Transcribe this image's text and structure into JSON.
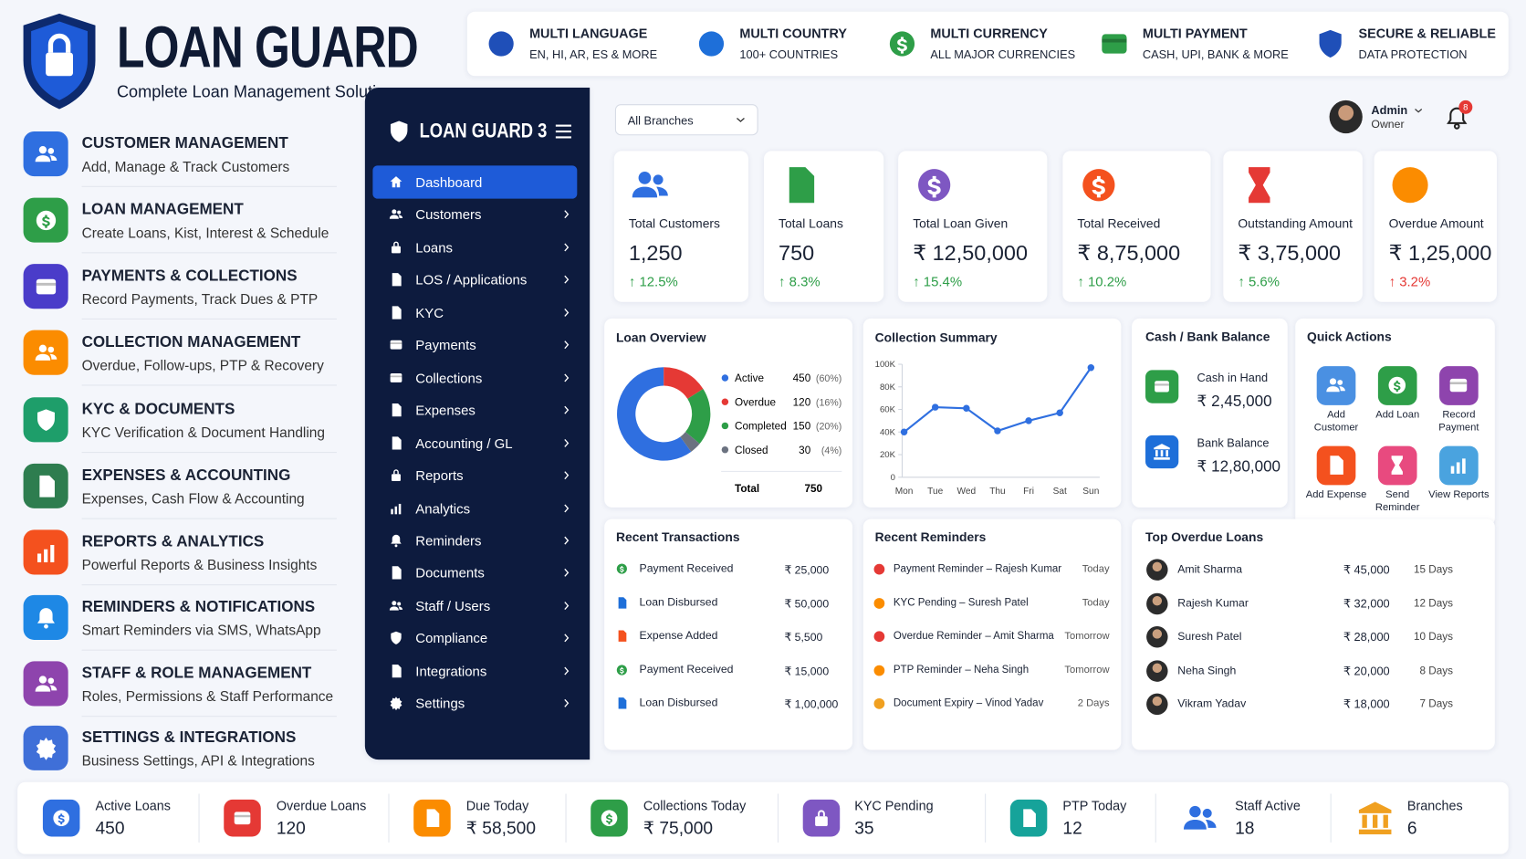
{
  "brand": {
    "title": "LOAN GUARD",
    "tagline": "Complete Loan Management Solution"
  },
  "features": [
    {
      "title": "MULTI LANGUAGE",
      "subtitle": "EN, HI, AR, ES & MORE"
    },
    {
      "title": "MULTI COUNTRY",
      "subtitle": "100+ COUNTRIES"
    },
    {
      "title": "MULTI CURRENCY",
      "subtitle": "ALL MAJOR CURRENCIES"
    },
    {
      "title": "MULTI PAYMENT",
      "subtitle": "CASH, UPI, BANK & MORE"
    },
    {
      "title": "SECURE & RELIABLE",
      "subtitle": "DATA PROTECTION"
    }
  ],
  "modules": [
    {
      "title": "CUSTOMER MANAGEMENT",
      "description": "Add, Manage & Track Customers"
    },
    {
      "title": "LOAN MANAGEMENT",
      "description": "Create Loans, Kist, Interest & Schedule"
    },
    {
      "title": "PAYMENTS & COLLECTIONS",
      "description": "Record Payments, Track Dues & PTP"
    },
    {
      "title": "COLLECTION MANAGEMENT",
      "description": "Overdue, Follow-ups, PTP & Recovery"
    },
    {
      "title": "KYC & DOCUMENTS",
      "description": "KYC Verification & Document Handling"
    },
    {
      "title": "EXPENSES & ACCOUNTING",
      "description": "Expenses, Cash Flow & Accounting"
    },
    {
      "title": "REPORTS & ANALYTICS",
      "description": "Powerful Reports & Business Insights"
    },
    {
      "title": "REMINDERS & NOTIFICATIONS",
      "description": "Smart Reminders via SMS, WhatsApp"
    },
    {
      "title": "STAFF & ROLE MANAGEMENT",
      "description": "Roles, Permissions & Staff Performance"
    },
    {
      "title": "SETTINGS & INTEGRATIONS",
      "description": "Business Settings, API & Integrations"
    }
  ],
  "sidebar": {
    "brand": "LOAN GUARD 3",
    "menu": [
      "Dashboard",
      "Customers",
      "Loans",
      "LOS / Applications",
      "KYC",
      "Payments",
      "Collections",
      "Expenses",
      "Accounting / GL",
      "Reports",
      "Analytics",
      "Reminders",
      "Documents",
      "Staff / Users",
      "Compliance",
      "Integrations",
      "Settings"
    ]
  },
  "topbar": {
    "branch": "All Branches",
    "user": "Admin",
    "role": "Owner",
    "notifications": 8
  },
  "stats": [
    {
      "label": "Total Customers",
      "value": "1,250",
      "change": "↑ 12.5%"
    },
    {
      "label": "Total Loans",
      "value": "750",
      "change": "↑ 8.3%"
    },
    {
      "label": "Total Loan Given",
      "value": "₹ 12,50,000",
      "change": "↑ 15.4%"
    },
    {
      "label": "Total Received",
      "value": "₹ 8,75,000",
      "change": "↑ 10.2%"
    },
    {
      "label": "Outstanding Amount",
      "value": "₹ 3,75,000",
      "change": "↑ 5.6%"
    },
    {
      "label": "Overdue Amount",
      "value": "₹ 1,25,000",
      "change": "↑ 3.2%"
    }
  ],
  "loan_overview": {
    "title": "Loan Overview",
    "chart": {
      "type": "pie",
      "categories": [
        "Active",
        "Overdue",
        "Completed",
        "Closed"
      ],
      "values": [
        450,
        120,
        150,
        30
      ],
      "percent_labels": [
        "(60%)",
        "(16%)",
        "(20%)",
        "(4%)"
      ],
      "colors": [
        "#2f6fe0",
        "#e53935",
        "#2e9e48",
        "#6b7280"
      ],
      "total_label": "Total",
      "total": 750
    }
  },
  "collection_summary": {
    "title": "Collection Summary",
    "chart": {
      "type": "line",
      "categories": [
        "Mon",
        "Tue",
        "Wed",
        "Thu",
        "Fri",
        "Sat",
        "Sun"
      ],
      "values": [
        40000,
        62000,
        61000,
        41000,
        50000,
        57000,
        97000
      ],
      "color": "#2f6fe0",
      "ylim": [
        0,
        100000
      ],
      "yticks": [
        0,
        {
          "value": 20000,
          "label": "20K"
        },
        {
          "value": 40000,
          "label": "40K"
        },
        {
          "value": 60000,
          "label": "60K"
        },
        {
          "value": 80000,
          "label": "80K"
        },
        {
          "value": 100000,
          "label": "100K"
        }
      ]
    }
  },
  "cash_bank": {
    "title": "Cash / Bank Balance",
    "items": [
      {
        "label": "Cash in Hand",
        "value": "₹ 2,45,000"
      },
      {
        "label": "Bank Balance",
        "value": "₹ 12,80,000"
      }
    ]
  },
  "quick_actions": {
    "title": "Quick Actions",
    "actions": [
      "Add Customer",
      "Add Loan",
      "Record Payment",
      "Add Expense",
      "Send Reminder",
      "View Reports"
    ]
  },
  "recent_transactions": {
    "title": "Recent Transactions",
    "rows": [
      {
        "label": "Payment Received",
        "amount": "₹ 25,000"
      },
      {
        "label": "Loan Disbursed",
        "amount": "₹ 50,000"
      },
      {
        "label": "Expense Added",
        "amount": "₹ 5,500"
      },
      {
        "label": "Payment Received",
        "amount": "₹ 15,000"
      },
      {
        "label": "Loan Disbursed",
        "amount": "₹ 1,00,000"
      }
    ]
  },
  "recent_reminders": {
    "title": "Recent Reminders",
    "rows": [
      {
        "text": "Payment Reminder – Rajesh Kumar",
        "when": "Today"
      },
      {
        "text": "KYC Pending – Suresh Patel",
        "when": "Today"
      },
      {
        "text": "Overdue Reminder – Amit Sharma",
        "when": "Tomorrow"
      },
      {
        "text": "PTP Reminder – Neha Singh",
        "when": "Tomorrow"
      },
      {
        "text": "Document Expiry – Vinod Yadav",
        "when": "2 Days"
      }
    ]
  },
  "top_overdue": {
    "title": "Top Overdue Loans",
    "rows": [
      {
        "name": "Amit Sharma",
        "amount": "₹ 45,000",
        "days": "15 Days"
      },
      {
        "name": "Rajesh Kumar",
        "amount": "₹ 32,000",
        "days": "12 Days"
      },
      {
        "name": "Suresh Patel",
        "amount": "₹ 28,000",
        "days": "10 Days"
      },
      {
        "name": "Neha Singh",
        "amount": "₹ 20,000",
        "days": "8 Days"
      },
      {
        "name": "Vikram Yadav",
        "amount": "₹ 18,000",
        "days": "7 Days"
      }
    ]
  },
  "bottom_stats": [
    {
      "label": "Active Loans",
      "value": "450"
    },
    {
      "label": "Overdue Loans",
      "value": "120"
    },
    {
      "label": "Due Today",
      "value": "₹ 58,500"
    },
    {
      "label": "Collections Today",
      "value": "₹ 75,000"
    },
    {
      "label": "KYC Pending",
      "value": "35"
    },
    {
      "label": "PTP Today",
      "value": "12"
    },
    {
      "label": "Staff Active",
      "value": "18"
    },
    {
      "label": "Branches",
      "value": "6"
    }
  ]
}
